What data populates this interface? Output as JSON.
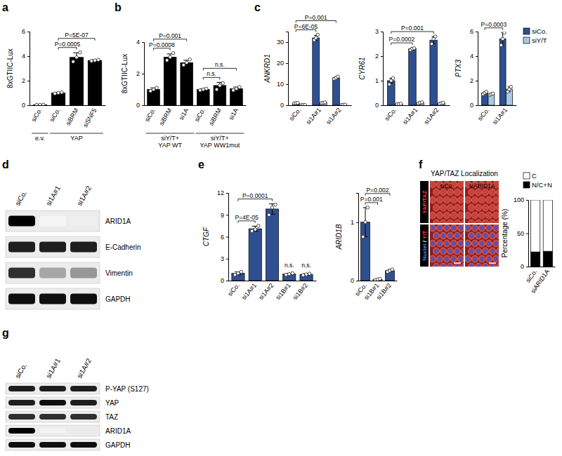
{
  "panel_labels": [
    "a",
    "b",
    "c",
    "d",
    "e",
    "f",
    "g"
  ],
  "chart_data": [
    {
      "type": "bar",
      "y_label": "8xGTIIC-Lux",
      "categories": [
        "siCo.",
        "siCo.",
        "siBRM",
        "siSNF5"
      ],
      "group_labels": [
        "e.v.",
        "YAP",
        null,
        null
      ],
      "values": [
        0.03,
        1.0,
        3.9,
        3.65
      ],
      "errors": [
        0.01,
        0.05,
        0.37,
        0.05
      ],
      "replicates": [
        [
          0.02,
          0.03,
          0.04
        ],
        [
          0.95,
          1.0,
          1.05
        ],
        [
          3.55,
          3.9,
          4.3
        ],
        [
          3.6,
          3.65,
          3.7
        ]
      ],
      "color": "#000000",
      "ylim": [
        0,
        6
      ],
      "yticks": [
        0,
        2,
        4,
        6
      ],
      "annotations": [
        {
          "text": "P=0.0005",
          "from": 1,
          "to": 2
        },
        {
          "text": "P=5E-07",
          "from": 1,
          "to": 3
        }
      ]
    },
    {
      "type": "bar",
      "y_label": "8xGTIIC-Lux",
      "categories": [
        "siCo.",
        "siBRM",
        "si1A",
        "siCo.",
        "siBRM",
        "si1A"
      ],
      "group_labels": [
        "siY/T+\nYAP WT",
        null,
        null,
        "siY/T+\nYAP WW1mut",
        null,
        null
      ],
      "values": [
        1.0,
        3.05,
        2.7,
        1.0,
        1.25,
        1.05
      ],
      "errors": [
        0.1,
        0.2,
        0.15,
        0.05,
        0.2,
        0.1
      ],
      "replicates": [
        [
          0.9,
          1.0,
          1.1
        ],
        [
          2.85,
          3.05,
          3.3
        ],
        [
          2.55,
          2.7,
          2.9
        ],
        [
          0.95,
          1.0,
          1.05
        ],
        [
          1.0,
          1.25,
          1.4
        ],
        [
          0.95,
          1.05,
          1.15
        ]
      ],
      "color": "#000000",
      "ylim": [
        0,
        4
      ],
      "yticks": [
        0,
        2,
        4
      ],
      "annotations": [
        {
          "text": "P=0.0008",
          "from": 0,
          "to": 1
        },
        {
          "text": "P=0.001",
          "from": 0,
          "to": 2
        },
        {
          "text": "n.s.",
          "from": 3,
          "to": 4
        },
        {
          "text": "n.s.",
          "from": 3,
          "to": 5
        }
      ]
    },
    {
      "type": "bar",
      "y_label": "ANKRD1",
      "categories": [
        "siCo.",
        "si1A#1",
        "si1A#2"
      ],
      "series": [
        {
          "color": "#2e5090",
          "values": [
            1.0,
            32.0,
            13.0
          ],
          "errors": [
            0.1,
            1.2,
            0.5
          ],
          "replicates": [
            [
              0.9,
              1.0,
              1.1
            ],
            [
              31.0,
              32.0,
              33.5
            ],
            [
              12.5,
              13.0,
              13.6
            ]
          ]
        },
        {
          "color": "#a9c9ea",
          "values": [
            0.1,
            1.2,
            0.2
          ],
          "errors": [
            0.03,
            0.2,
            0.05
          ],
          "replicates": [
            [
              0.05,
              0.1,
              0.12
            ],
            [
              1.0,
              1.2,
              1.4
            ],
            [
              0.15,
              0.2,
              0.25
            ]
          ]
        }
      ],
      "ylim": [
        0,
        35
      ],
      "yticks": [
        0,
        10,
        20,
        30
      ],
      "annotations": [
        {
          "text": "P=6E-05",
          "from": 0,
          "to": 1
        },
        {
          "text": "P=0.001",
          "from": 0,
          "to": 2
        }
      ]
    },
    {
      "type": "bar",
      "y_label": "CYR61",
      "categories": [
        "siCo.",
        "si1A#1",
        "si1A#2"
      ],
      "series": [
        {
          "color": "#2e5090",
          "values": [
            1.0,
            2.3,
            2.65
          ],
          "errors": [
            0.1,
            0.04,
            0.15
          ],
          "replicates": [
            [
              0.85,
              1.0,
              1.1
            ],
            [
              2.25,
              2.3,
              2.32
            ],
            [
              2.5,
              2.7,
              2.8
            ]
          ]
        },
        {
          "color": "#a9c9ea",
          "values": [
            0.05,
            0.1,
            0.08
          ],
          "errors": [
            0.02,
            0.02,
            0.02
          ],
          "replicates": [
            [
              0.04,
              0.05,
              0.06
            ],
            [
              0.08,
              0.1,
              0.12
            ],
            [
              0.06,
              0.08,
              0.1
            ]
          ]
        }
      ],
      "ylim": [
        0,
        3
      ],
      "yticks": [
        0,
        1,
        2,
        3
      ],
      "annotations": [
        {
          "text": "P=0.0002",
          "from": 0,
          "to": 1
        },
        {
          "text": "P=0.001",
          "from": 0,
          "to": 2
        }
      ]
    },
    {
      "type": "bar",
      "y_label": "PTX3",
      "categories": [
        "siCo.",
        "si1A#1"
      ],
      "series": [
        {
          "name": "siCo.",
          "color": "#2e5090",
          "values": [
            1.0,
            5.4
          ],
          "errors": [
            0.1,
            0.5
          ],
          "replicates": [
            [
              0.9,
              1.0,
              1.1
            ],
            [
              4.9,
              5.4,
              5.9
            ]
          ]
        },
        {
          "name": "siY/T",
          "color": "#a9c9ea",
          "values": [
            0.9,
            1.3
          ],
          "errors": [
            0.05,
            0.2
          ],
          "replicates": [
            [
              0.85,
              0.9,
              0.95
            ],
            [
              1.1,
              1.3,
              1.5
            ]
          ]
        }
      ],
      "ylim": [
        0,
        6
      ],
      "yticks": [
        0,
        2,
        4,
        6
      ],
      "legend": "top-right",
      "annotations": [
        {
          "text": "P=0.0003",
          "from": 0,
          "to": 1
        }
      ]
    },
    {
      "type": "bar",
      "y_label": "CTGF",
      "categories": [
        "siCo.",
        "si1A#1",
        "si1A#2",
        "si1B#1",
        "si1B#2"
      ],
      "values": [
        1.0,
        7.1,
        9.8,
        0.9,
        0.85
      ],
      "errors": [
        0.2,
        0.35,
        0.7,
        0.1,
        0.1
      ],
      "replicates": [
        [
          0.8,
          1.0,
          1.2
        ],
        [
          6.8,
          7.0,
          7.5
        ],
        [
          9.0,
          10.0,
          10.4
        ],
        [
          0.8,
          0.9,
          1.0
        ],
        [
          0.75,
          0.85,
          0.95
        ]
      ],
      "color": "#2e5090",
      "ylim": [
        0,
        12
      ],
      "yticks": [
        0,
        3,
        6,
        9,
        12
      ],
      "annotations": [
        {
          "text": "P=4E-05",
          "from": 0,
          "to": 1
        },
        {
          "text": "P=0.0001",
          "from": 0,
          "to": 2
        },
        {
          "text": "n.s.",
          "from": 3,
          "to": 3
        },
        {
          "text": "n.s.",
          "from": 4,
          "to": 4
        }
      ]
    },
    {
      "type": "bar",
      "y_label": "ARID1B",
      "categories": [
        "siCo.",
        "si1B#1",
        "si1B#2"
      ],
      "values": [
        1.0,
        0.02,
        0.17
      ],
      "errors": [
        0.25,
        0.01,
        0.02
      ],
      "replicates": [
        [
          0.75,
          1.0,
          1.25
        ],
        [
          0.01,
          0.02,
          0.03
        ],
        [
          0.15,
          0.17,
          0.19
        ]
      ],
      "color": "#2e5090",
      "ylim": [
        0,
        1.5
      ],
      "yticks": [
        0,
        1
      ],
      "annotations": [
        {
          "text": "P=0.001",
          "from": 0,
          "to": 1
        },
        {
          "text": "P=0.002",
          "from": 0,
          "to": 2
        }
      ]
    },
    {
      "type": "bar",
      "stacked": true,
      "y_label": "Percentage (%)",
      "categories": [
        "siCo.",
        "siARID1A"
      ],
      "series": [
        {
          "name": "N/C+N",
          "color": "#000000",
          "values": [
            22,
            23
          ]
        },
        {
          "name": "C",
          "color": "#ffffff",
          "values": [
            78,
            77
          ]
        }
      ],
      "ylim": [
        0,
        100
      ],
      "yticks": [
        0,
        50,
        100
      ],
      "legend": "top-right"
    }
  ],
  "blots": [
    {
      "lanes": [
        "siCo.",
        "si1A#1",
        "si1A#2"
      ],
      "rows": [
        {
          "label": "ARID1A",
          "signal": [
            1.0,
            0.08,
            0.12
          ]
        },
        {
          "label": "E-Cadherin",
          "signal": [
            0.9,
            0.9,
            0.9
          ]
        },
        {
          "label": "Vimentin",
          "signal": [
            0.85,
            0.45,
            0.5
          ]
        },
        {
          "label": "GAPDH",
          "signal": [
            0.95,
            0.95,
            0.95
          ]
        }
      ]
    },
    {
      "lanes": [
        "siCo.",
        "si1A#1",
        "si1A#2"
      ],
      "rows": [
        {
          "label": "P-YAP (S127)",
          "signal": [
            0.9,
            0.9,
            0.9
          ]
        },
        {
          "label": "YAP",
          "signal": [
            0.9,
            0.95,
            0.9
          ]
        },
        {
          "label": "TAZ",
          "signal": [
            0.85,
            0.85,
            0.85
          ]
        },
        {
          "label": "ARID1A",
          "signal": [
            1.0,
            0.1,
            0.15
          ]
        },
        {
          "label": "GAPDH",
          "signal": [
            0.95,
            0.95,
            0.95
          ]
        }
      ]
    }
  ],
  "image_panel": {
    "title": "YAP/TAZ Localization",
    "columns": [
      "siCo.",
      "siARID1A"
    ],
    "rows": [
      [
        "YAP/TAZ"
      ],
      [
        "Nuclei",
        "/",
        "Y/T"
      ]
    ]
  }
}
